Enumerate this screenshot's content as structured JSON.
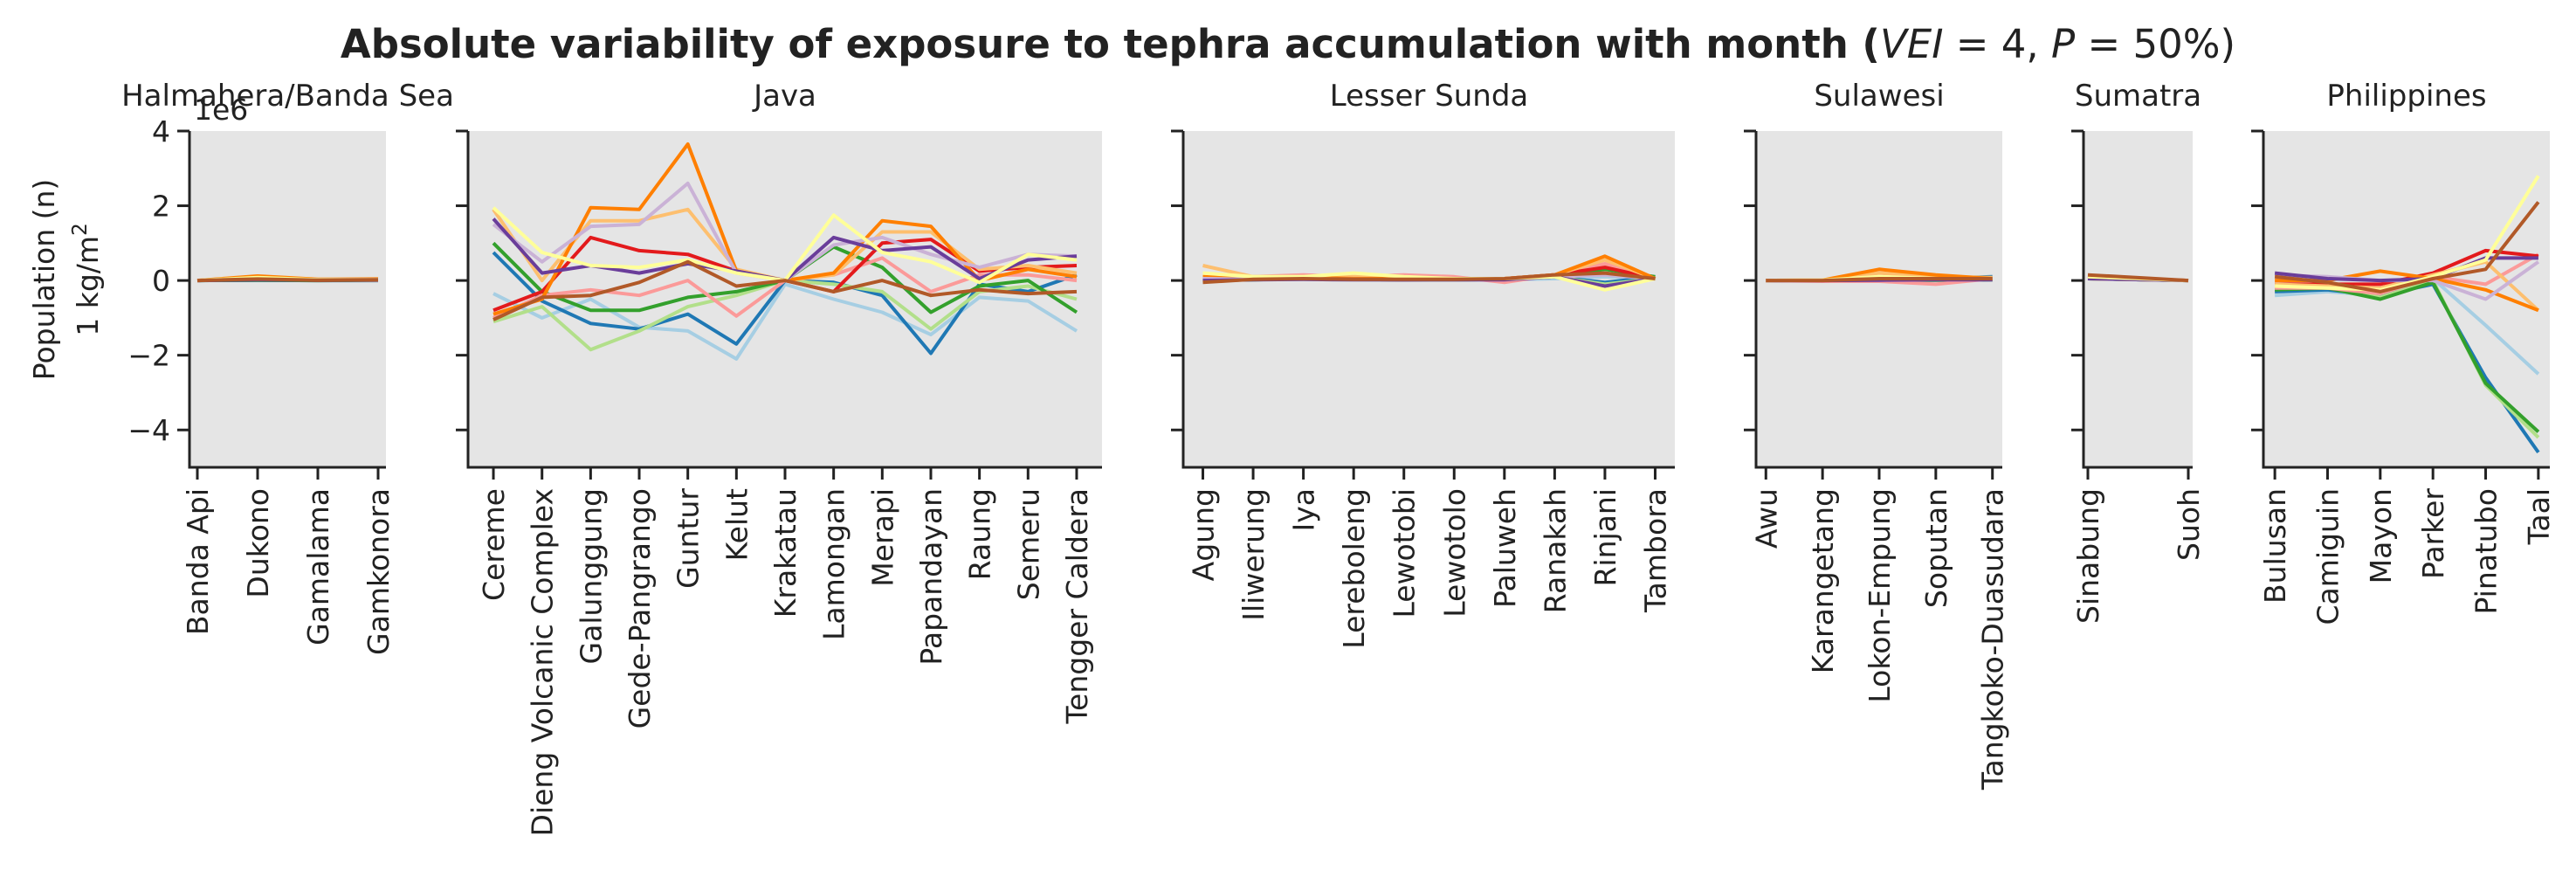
{
  "chart_data": {
    "type": "line",
    "title": "Absolute variability of exposure to tephra accumulation with month (VEI = 4, P = 50%)",
    "title_parts": {
      "lead": "Absolute variability of exposure to tephra accumulation with month (",
      "vei": "VEI",
      "eq1": " = 4, ",
      "p": "P",
      "eq2": " = 50%)"
    },
    "ylabel": [
      "Population (n)",
      "1 kg/m²"
    ],
    "ylabel_line2_base": "1 kg/m",
    "ylabel_line2_sup": "2",
    "offset_label": "1e6",
    "ylim": [
      -5,
      4
    ],
    "yticks": [
      4,
      2,
      0,
      -2,
      -4
    ],
    "y_tick_labels": [
      "4",
      "2",
      "0",
      "−2",
      "−4"
    ],
    "background": "#e5e5e5",
    "grid": false,
    "colors": [
      "#a6cee3",
      "#1f78b4",
      "#b2df8a",
      "#33a02c",
      "#fb9a99",
      "#e31a1c",
      "#fdbf6f",
      "#ff7f00",
      "#cab2d6",
      "#6a3d9a",
      "#ffff99",
      "#b15928"
    ],
    "panels": [
      {
        "title": "Halmahera/Banda Sea",
        "categories": [
          "Banda Api",
          "Dukono",
          "Gamalama",
          "Gamkonora"
        ],
        "lines": [
          [
            0.0,
            0.0,
            0.0,
            0.0
          ],
          [
            0.0,
            0.01,
            0.0,
            0.0
          ],
          [
            0.0,
            0.03,
            0.01,
            0.01
          ],
          [
            0.0,
            0.01,
            0.0,
            0.01
          ],
          [
            0.0,
            0.06,
            0.02,
            0.01
          ],
          [
            0.0,
            0.04,
            0.01,
            0.02
          ],
          [
            0.0,
            0.1,
            0.03,
            0.03
          ],
          [
            0.0,
            0.12,
            0.03,
            0.04
          ],
          [
            0.0,
            0.05,
            0.02,
            0.02
          ],
          [
            0.0,
            0.02,
            0.01,
            0.01
          ],
          [
            0.0,
            0.08,
            0.02,
            0.02
          ],
          [
            0.0,
            0.04,
            0.01,
            0.02
          ]
        ]
      },
      {
        "title": "Java",
        "categories": [
          "Cereme",
          "Dieng Volcanic Complex",
          "Galunggung",
          "Gede-Pangrango",
          "Guntur",
          "Kelut",
          "Krakatau",
          "Lamongan",
          "Merapi",
          "Papandayan",
          "Raung",
          "Semeru",
          "Tengger Caldera"
        ],
        "lines": [
          [
            -0.35,
            -1.0,
            -0.5,
            -1.25,
            -1.35,
            -2.1,
            -0.1,
            -0.5,
            -0.85,
            -1.45,
            -0.45,
            -0.55,
            -1.35
          ],
          [
            0.75,
            -0.55,
            -1.15,
            -1.3,
            -0.9,
            -1.7,
            0.0,
            -0.05,
            -0.4,
            -1.95,
            -0.1,
            -0.3,
            0.15
          ],
          [
            -1.1,
            -0.7,
            -1.85,
            -1.35,
            -0.7,
            -0.4,
            0.0,
            -0.1,
            -0.3,
            -1.3,
            -0.3,
            -0.15,
            -0.5
          ],
          [
            1.0,
            -0.3,
            -0.8,
            -0.8,
            -0.45,
            -0.3,
            0.0,
            0.9,
            0.35,
            -0.85,
            -0.15,
            0.0,
            -0.85
          ],
          [
            -1.0,
            -0.4,
            -0.25,
            -0.4,
            0.0,
            -0.95,
            0.0,
            0.15,
            0.6,
            -0.3,
            0.15,
            0.15,
            0.0
          ],
          [
            -0.8,
            -0.3,
            1.15,
            0.8,
            0.7,
            0.25,
            0.0,
            -0.3,
            1.0,
            1.1,
            0.25,
            0.35,
            0.4
          ],
          [
            1.9,
            0.0,
            1.6,
            1.6,
            1.9,
            0.3,
            0.0,
            0.15,
            1.3,
            1.3,
            0.3,
            0.4,
            0.2
          ],
          [
            -0.9,
            -0.5,
            1.95,
            1.9,
            3.65,
            0.25,
            0.0,
            0.2,
            1.6,
            1.45,
            0.0,
            0.3,
            0.1
          ],
          [
            1.5,
            0.5,
            1.45,
            1.5,
            2.6,
            0.2,
            0.0,
            0.95,
            1.15,
            0.7,
            0.35,
            0.7,
            0.65
          ],
          [
            1.65,
            0.2,
            0.4,
            0.2,
            0.45,
            0.25,
            0.0,
            1.15,
            0.8,
            0.9,
            0.05,
            0.55,
            0.65
          ],
          [
            1.95,
            0.75,
            0.4,
            0.35,
            0.55,
            0.2,
            0.0,
            1.75,
            0.75,
            0.5,
            -0.05,
            0.7,
            0.55
          ],
          [
            -1.05,
            -0.45,
            -0.4,
            -0.05,
            0.5,
            -0.15,
            0.0,
            -0.3,
            0.0,
            -0.4,
            -0.25,
            -0.35,
            -0.3
          ]
        ]
      },
      {
        "title": "Lesser Sunda",
        "categories": [
          "Agung",
          "Iliwerung",
          "Iya",
          "Lereboleng",
          "Lewotobi",
          "Lewotolo",
          "Paluweh",
          "Ranakah",
          "Rinjani",
          "Tambora"
        ],
        "lines": [
          [
            0.0,
            0.02,
            0.03,
            0.02,
            0.01,
            0.02,
            0.02,
            0.05,
            0.1,
            0.05
          ],
          [
            0.05,
            0.03,
            0.05,
            0.03,
            0.02,
            0.02,
            0.03,
            0.1,
            -0.05,
            0.1
          ],
          [
            0.1,
            0.05,
            0.08,
            0.05,
            0.05,
            0.05,
            0.05,
            0.1,
            -0.1,
            0.05
          ],
          [
            0.0,
            0.02,
            0.05,
            0.03,
            0.02,
            0.02,
            0.03,
            0.1,
            0.3,
            0.1
          ],
          [
            0.1,
            0.1,
            0.15,
            0.1,
            0.15,
            0.1,
            -0.05,
            0.15,
            0.45,
            0.05
          ],
          [
            0.05,
            0.03,
            0.05,
            0.03,
            0.02,
            0.03,
            0.05,
            0.15,
            0.35,
            0.05
          ],
          [
            0.4,
            0.1,
            0.1,
            0.1,
            0.05,
            0.05,
            0.05,
            0.15,
            0.55,
            0.05
          ],
          [
            0.1,
            0.05,
            0.08,
            0.05,
            0.05,
            0.05,
            0.05,
            0.15,
            0.65,
            0.05
          ],
          [
            0.05,
            0.03,
            0.05,
            0.03,
            0.02,
            0.02,
            0.03,
            0.1,
            0.15,
            0.05
          ],
          [
            0.0,
            0.02,
            0.03,
            0.02,
            0.02,
            0.02,
            0.02,
            0.1,
            -0.15,
            0.05
          ],
          [
            0.2,
            0.1,
            0.1,
            0.2,
            0.1,
            0.05,
            0.05,
            0.1,
            -0.25,
            0.05
          ],
          [
            -0.05,
            0.03,
            0.05,
            0.03,
            0.03,
            0.03,
            0.05,
            0.15,
            0.2,
            0.05
          ]
        ]
      },
      {
        "title": "Sulawesi",
        "categories": [
          "Awu",
          "Karangetang",
          "Lokon-Empung",
          "Soputan",
          "Tangkoko-Duasudara"
        ],
        "lines": [
          [
            0.0,
            -0.01,
            0.02,
            0.1,
            0.05
          ],
          [
            0.0,
            0.0,
            0.03,
            0.05,
            0.1
          ],
          [
            0.0,
            0.0,
            0.02,
            0.02,
            0.03
          ],
          [
            0.0,
            0.0,
            0.01,
            0.01,
            0.02
          ],
          [
            0.0,
            -0.02,
            -0.02,
            -0.1,
            0.05
          ],
          [
            0.0,
            0.0,
            0.02,
            0.03,
            0.05
          ],
          [
            0.0,
            0.01,
            0.2,
            0.1,
            0.08
          ],
          [
            0.0,
            0.01,
            0.3,
            0.15,
            0.05
          ],
          [
            0.0,
            0.0,
            0.02,
            0.03,
            0.03
          ],
          [
            0.0,
            0.0,
            0.01,
            0.02,
            0.02
          ],
          [
            0.0,
            0.01,
            0.1,
            0.05,
            0.05
          ],
          [
            0.0,
            0.0,
            0.05,
            0.05,
            0.05
          ]
        ]
      },
      {
        "title": "Sumatra",
        "categories": [
          "Sinabung",
          "Suoh"
        ],
        "lines": [
          [
            0.05,
            0.0
          ],
          [
            0.05,
            0.0
          ],
          [
            0.05,
            0.0
          ],
          [
            0.05,
            0.0
          ],
          [
            0.05,
            0.0
          ],
          [
            0.1,
            0.0
          ],
          [
            0.05,
            0.0
          ],
          [
            0.1,
            0.0
          ],
          [
            0.1,
            0.0
          ],
          [
            0.05,
            0.0
          ],
          [
            0.1,
            0.0
          ],
          [
            0.15,
            0.0
          ]
        ]
      },
      {
        "title": "Philippines",
        "categories": [
          "Bulusan",
          "Camiguin",
          "Mayon",
          "Parker",
          "Pinatubo",
          "Taal"
        ],
        "lines": [
          [
            -0.4,
            -0.3,
            -0.4,
            0.05,
            -1.2,
            -2.5
          ],
          [
            -0.3,
            -0.25,
            -0.4,
            -0.1,
            -2.6,
            -4.6
          ],
          [
            -0.15,
            -0.2,
            -0.45,
            0.0,
            -2.8,
            -4.2
          ],
          [
            -0.25,
            -0.2,
            -0.5,
            -0.05,
            -2.75,
            -4.05
          ],
          [
            -0.2,
            -0.2,
            -0.35,
            0.1,
            -0.1,
            0.7
          ],
          [
            -0.1,
            -0.1,
            -0.1,
            0.2,
            0.8,
            0.65
          ],
          [
            -0.1,
            -0.15,
            -0.2,
            0.15,
            0.5,
            -0.8
          ],
          [
            0.0,
            0.0,
            0.25,
            0.05,
            -0.25,
            -0.8
          ],
          [
            0.15,
            0.1,
            0.0,
            0.0,
            -0.5,
            0.5
          ],
          [
            0.2,
            0.05,
            0.0,
            0.05,
            0.6,
            0.6
          ],
          [
            -0.15,
            -0.2,
            -0.25,
            0.1,
            0.55,
            2.8
          ],
          [
            0.1,
            -0.05,
            -0.3,
            0.05,
            0.3,
            2.1
          ]
        ]
      }
    ]
  }
}
